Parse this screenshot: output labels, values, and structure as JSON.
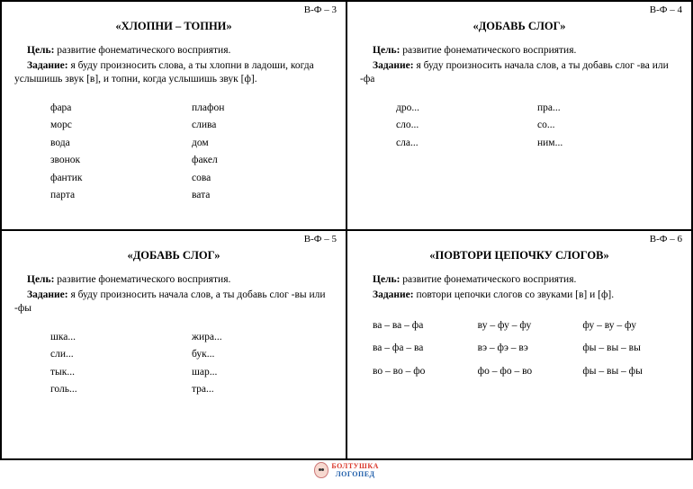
{
  "cards": [
    {
      "id": "В-Ф – 3",
      "title": "«ХЛОПНИ – ТОПНИ»",
      "goal_label": "Цель:",
      "goal": "развитие фонематического восприятия.",
      "task_label": "Задание:",
      "task": "я буду произносить слова, а ты хлопни в ладоши, когда услышишь звук [в], и топни, когда услышишь звук [ф].",
      "columns": [
        [
          "фара",
          "морс",
          "вода",
          "звонок",
          "фантик",
          "парта"
        ],
        [
          "плафон",
          "слива",
          "дом",
          "факел",
          "сова",
          "вата"
        ]
      ]
    },
    {
      "id": "В-Ф – 4",
      "title": "«ДОБАВЬ СЛОГ»",
      "goal_label": "Цель:",
      "goal": "развитие фонематического восприятия.",
      "task_label": "Задание:",
      "task": "я буду произносить начала слов, а ты добавь слог -ва или -фа",
      "columns": [
        [
          "дро...",
          "сло...",
          "сла..."
        ],
        [
          "пра...",
          "со...",
          "ним..."
        ]
      ]
    },
    {
      "id": "В-Ф – 5",
      "title": "«ДОБАВЬ СЛОГ»",
      "goal_label": "Цель:",
      "goal": "развитие фонематического восприятия.",
      "task_label": "Задание:",
      "task": "я буду произносить начала слов, а ты добавь слог -вы или -фы",
      "columns": [
        [
          "шка...",
          "сли...",
          "тык...",
          "голь..."
        ],
        [
          "жира...",
          "бук...",
          "шар...",
          "тра..."
        ]
      ]
    },
    {
      "id": "В-Ф – 6",
      "title": "«ПОВТОРИ ЦЕПОЧКУ СЛОГОВ»",
      "goal_label": "Цель:",
      "goal": "развитие фонематического восприятия.",
      "task_label": "Задание:",
      "task": "повтори цепочки слогов со звуками [в] и [ф].",
      "columns3": [
        [
          "ва – ва – фа",
          "ва – фа – ва",
          "во – во – фо"
        ],
        [
          "ву – фу – фу",
          "вэ – фэ – вэ",
          "фо – фо – во"
        ],
        [
          "фу – ву – фу",
          "фы – вы – вы",
          "фы – вы – фы"
        ]
      ]
    }
  ],
  "logo": {
    "line1": "БОЛТУШКА",
    "line2": "ЛОГОПЕД"
  }
}
